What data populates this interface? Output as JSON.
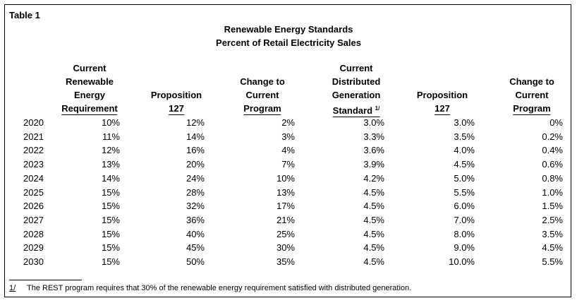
{
  "table_label": "Table 1",
  "title": "Renewable Energy Standards",
  "subtitle": "Percent of Retail Electricity Sales",
  "table": {
    "headers": [
      {
        "lines": [
          "Current",
          "Renewable",
          "Energy",
          "Requirement"
        ]
      },
      {
        "lines": [
          "Proposition",
          "127"
        ]
      },
      {
        "lines": [
          "Change to",
          "Current",
          "Program"
        ]
      },
      {
        "lines": [
          "Current",
          "Distributed",
          "Generation",
          "Standard"
        ],
        "note": "1/"
      },
      {
        "lines": [
          "Proposition",
          "127"
        ]
      },
      {
        "lines": [
          "Change to",
          "Current",
          "Program"
        ]
      }
    ],
    "rows": [
      [
        "2020",
        "10%",
        "12%",
        "2%",
        "3.0%",
        "3.0%",
        "0%"
      ],
      [
        "2021",
        "11%",
        "14%",
        "3%",
        "3.3%",
        "3.5%",
        "0.2%"
      ],
      [
        "2022",
        "12%",
        "16%",
        "4%",
        "3.6%",
        "4.0%",
        "0.4%"
      ],
      [
        "2023",
        "13%",
        "20%",
        "7%",
        "3.9%",
        "4.5%",
        "0.6%"
      ],
      [
        "2024",
        "14%",
        "24%",
        "10%",
        "4.2%",
        "5.0%",
        "0.8%"
      ],
      [
        "2025",
        "15%",
        "28%",
        "13%",
        "4.5%",
        "5.5%",
        "1.0%"
      ],
      [
        "2026",
        "15%",
        "32%",
        "17%",
        "4.5%",
        "6.0%",
        "1.5%"
      ],
      [
        "2027",
        "15%",
        "36%",
        "21%",
        "4.5%",
        "7.0%",
        "2.5%"
      ],
      [
        "2028",
        "15%",
        "40%",
        "25%",
        "4.5%",
        "8.0%",
        "3.5%"
      ],
      [
        "2029",
        "15%",
        "45%",
        "30%",
        "4.5%",
        "9.0%",
        "4.5%"
      ],
      [
        "2030",
        "15%",
        "50%",
        "35%",
        "4.5%",
        "10.0%",
        "5.5%"
      ]
    ]
  },
  "footnote": {
    "marker": "1/",
    "text": "The REST program requires that 30% of the renewable energy requirement satisfied with distributed generation."
  }
}
